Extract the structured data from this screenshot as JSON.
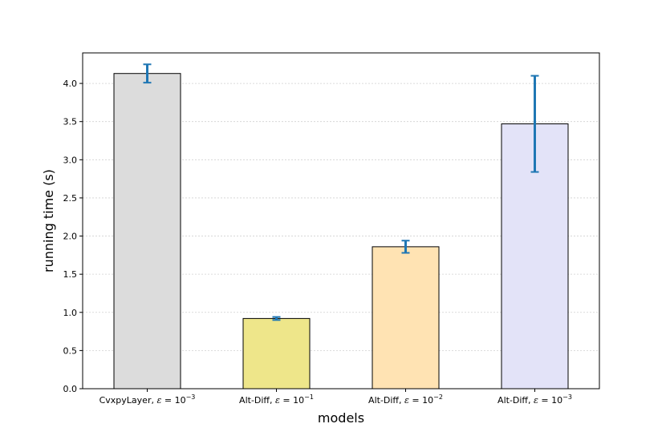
{
  "chart_data": {
    "type": "bar",
    "xlabel": "models",
    "ylabel": "running time (s)",
    "ylim": [
      0,
      4.4
    ],
    "yticks": [
      "0.0",
      "0.5",
      "1.0",
      "1.5",
      "2.0",
      "2.5",
      "3.0",
      "3.5",
      "4.0"
    ],
    "grid": "horizontal",
    "categories": [
      {
        "prefix": "CvxpyLayer, ",
        "eps": "ε",
        "eq": " = 10",
        "exp": "−3"
      },
      {
        "prefix": "Alt-Diff, ",
        "eps": "ε",
        "eq": " = 10",
        "exp": "−1"
      },
      {
        "prefix": "Alt-Diff, ",
        "eps": "ε",
        "eq": " = 10",
        "exp": "−2"
      },
      {
        "prefix": "Alt-Diff, ",
        "eps": "ε",
        "eq": " = 10",
        "exp": "−3"
      }
    ],
    "values": [
      4.13,
      0.92,
      1.86,
      3.47
    ],
    "errors": [
      0.12,
      0.02,
      0.08,
      0.63
    ],
    "colors": [
      "#dcdcdc",
      "#eee68a",
      "#ffe3b3",
      "#e3e3f8"
    ],
    "error_color": "#1f77b4",
    "edge_color": "#000000"
  }
}
